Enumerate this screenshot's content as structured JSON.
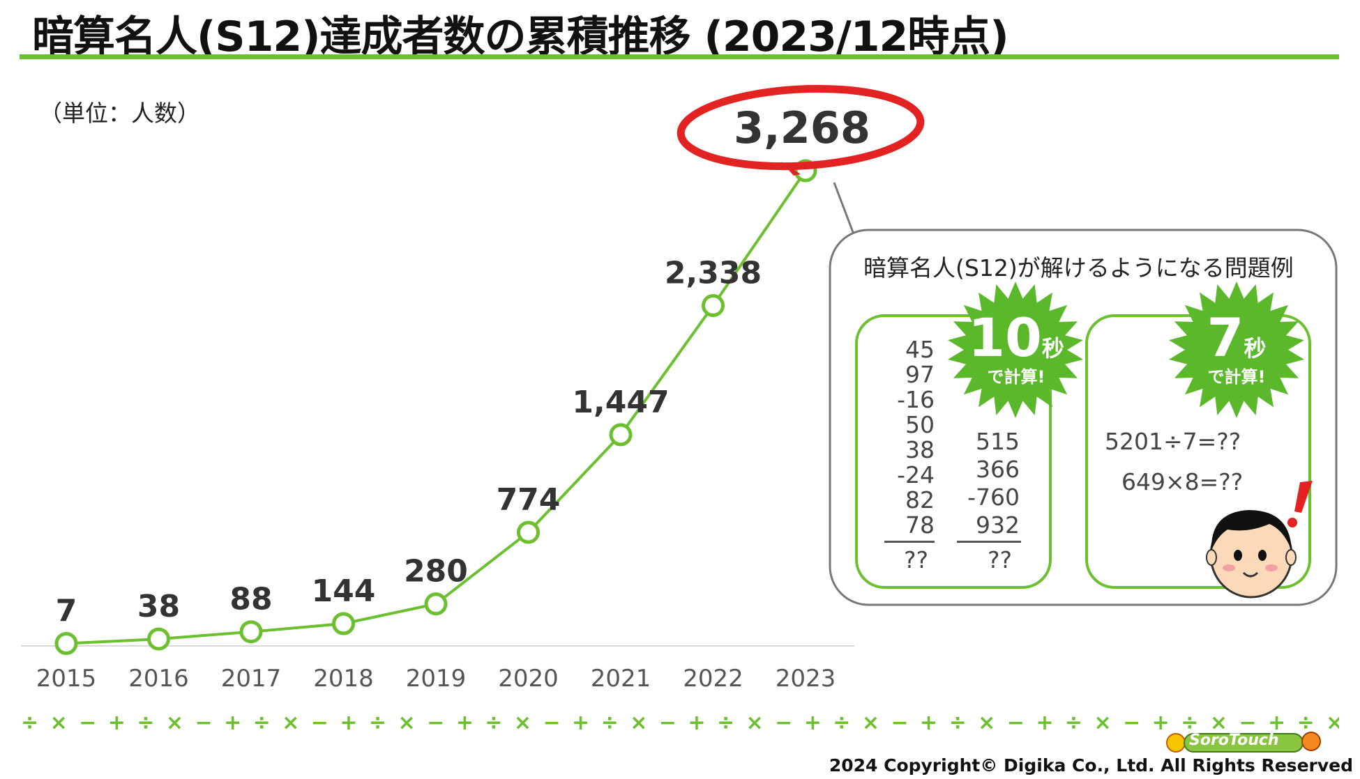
{
  "title": "暗算名人(S12)達成者数の累積推移 (2023/12時点)",
  "unit_label": "（単位：人数）",
  "chart_data": {
    "type": "line",
    "categories": [
      "2015",
      "2016",
      "2017",
      "2018",
      "2019",
      "2020",
      "2021",
      "2022",
      "2023"
    ],
    "values": [
      7,
      38,
      88,
      144,
      280,
      774,
      1447,
      2338,
      3268
    ],
    "value_labels": [
      "7",
      "38",
      "88",
      "144",
      "280",
      "774",
      "1,447",
      "2,338",
      "3,268"
    ],
    "highlight_index": 8,
    "ylim": [
      0,
      3600
    ],
    "grid": false,
    "series_color": "#6cbf2e",
    "highlight_color": "#e32222"
  },
  "callout": {
    "title": "暗算名人(S12)が解けるようになる問題例",
    "panel1": {
      "badge_number": "10",
      "badge_unit": "秒",
      "badge_sub": "で計算!",
      "col1": [
        "45",
        "97",
        "-16",
        "50",
        "38",
        "-24",
        "82",
        "78"
      ],
      "col2": [
        "515",
        "366",
        "-760",
        "932"
      ],
      "answer": "??"
    },
    "panel2": {
      "badge_number": "7",
      "badge_unit": "秒",
      "badge_sub": "で計算!",
      "line1": "5201÷7=??",
      "line2": "649×8=??"
    }
  },
  "footer": {
    "pattern": "÷ × − + ÷ × − + ÷ × − + ÷ × − + ÷ × − + ÷ × − + ÷ × − + ÷ × − + ÷ × − + ÷ × − + ÷ × − + ÷ × − + ÷ × − + ÷ × − + ÷ × − + ÷ × − + ÷ ×",
    "copyright": "2024 Copyright© Digika Co., Ltd.  All Rights Reserved",
    "logo_text": "SoroTouch"
  },
  "colors": {
    "accent_green": "#6cbf2e",
    "badge_green": "#5bb82a",
    "highlight_red": "#e32222"
  }
}
